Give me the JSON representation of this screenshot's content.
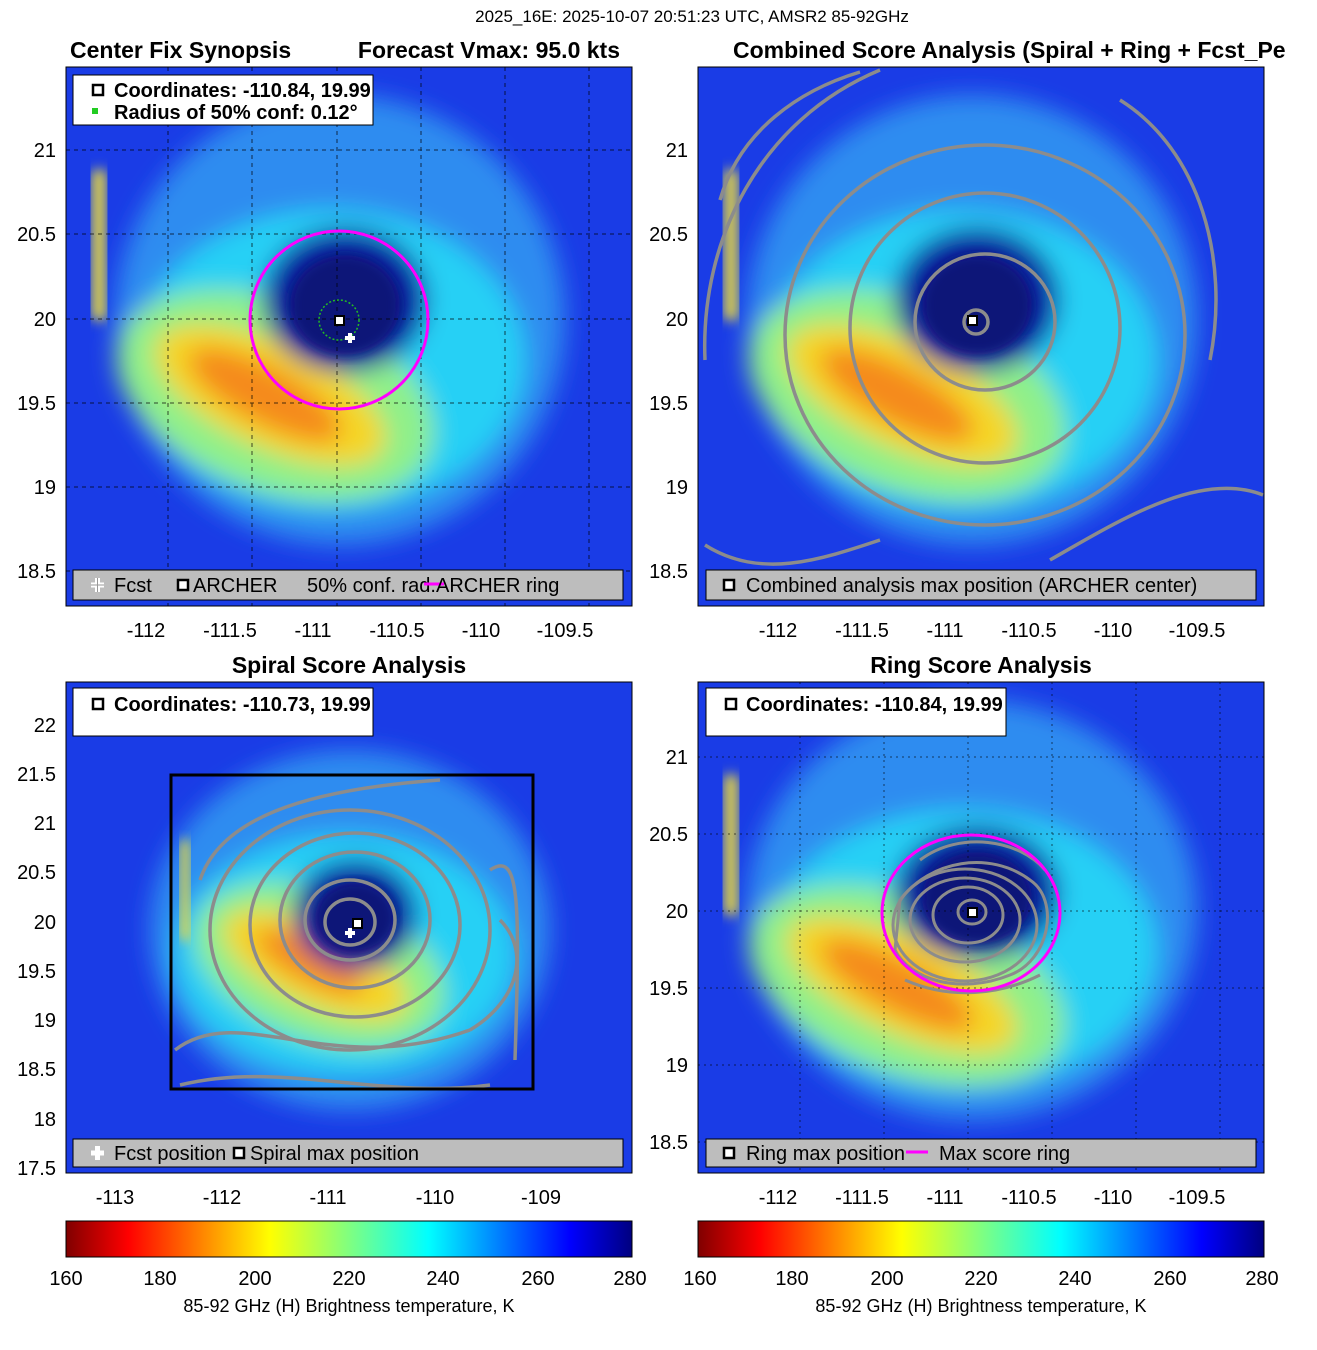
{
  "suptitle": "2025_16E: 2025-10-07 20:51:23 UTC, AMSR2 85-92GHz",
  "colors": {
    "ring": "#ff00ff",
    "contour": "#8c8c8c",
    "conf_circle": "#22bb22",
    "legend_bg": "#bdbdbd"
  },
  "colorbar": {
    "label": "85-92 GHz (H) Brightness temperature, K",
    "ticks": [
      "160",
      "180",
      "200",
      "220",
      "240",
      "260",
      "280"
    ],
    "range": [
      160,
      280
    ],
    "colormap": "jet_reversed"
  },
  "chart_data": [
    {
      "type": "heatmap",
      "panel": "top-left",
      "title_left": "Center Fix Synopsis",
      "title_right": "Forecast Vmax: 95.0 kts",
      "xlim": [
        -112.6,
        -109.2
      ],
      "ylim": [
        18.3,
        21.5
      ],
      "xticks": [
        "-112",
        "-111.5",
        "-111",
        "-110.5",
        "-110",
        "-109.5"
      ],
      "yticks": [
        "18.5",
        "19",
        "19.5",
        "20",
        "20.5",
        "21"
      ],
      "grid": true,
      "info_lines": [
        "Coordinates: -110.84, 19.99",
        "Radius of 50% conf: 0.12°"
      ],
      "legend": [
        "Fcst",
        "ARCHER",
        "50% conf. rad.",
        "ARCHER ring"
      ],
      "archer_center": [
        -110.84,
        19.99
      ],
      "fcst_position": [
        -110.8,
        19.89
      ],
      "conf_radius_deg": 0.12,
      "ring_radius_deg": 0.53
    },
    {
      "type": "heatmap",
      "panel": "top-right",
      "title": "Combined Score Analysis (Spiral + Ring + Fcst_Pe",
      "xlim": [
        -112.6,
        -109.2
      ],
      "ylim": [
        18.3,
        21.5
      ],
      "xticks": [
        "-112",
        "-111.5",
        "-111",
        "-110.5",
        "-110",
        "-109.5"
      ],
      "yticks": [
        "18.5",
        "19",
        "19.5",
        "20",
        "20.5",
        "21"
      ],
      "grid": false,
      "legend": [
        "Combined analysis max position (ARCHER center)"
      ],
      "max_position": [
        -110.84,
        19.99
      ]
    },
    {
      "type": "heatmap",
      "panel": "bottom-left",
      "title": "Spiral Score Analysis",
      "xlim": [
        -113.5,
        -108.2
      ],
      "ylim": [
        17.5,
        22.5
      ],
      "xticks": [
        "-113",
        "-112",
        "-111",
        "-110",
        "-109"
      ],
      "yticks": [
        "17.5",
        "18",
        "18.5",
        "19",
        "19.5",
        "20",
        "20.5",
        "21",
        "21.5",
        "22"
      ],
      "grid": false,
      "info_lines": [
        "Coordinates: -110.73, 19.99"
      ],
      "legend": [
        "Fcst position",
        "Spiral max position"
      ],
      "spiral_max": [
        -110.73,
        19.99
      ],
      "fcst_position": [
        -110.8,
        19.89
      ],
      "search_box": {
        "lon": [
          -112.5,
          -109.1
        ],
        "lat": [
          18.3,
          21.5
        ]
      }
    },
    {
      "type": "heatmap",
      "panel": "bottom-right",
      "title": "Ring Score Analysis",
      "xlim": [
        -112.6,
        -109.2
      ],
      "ylim": [
        18.3,
        21.5
      ],
      "xticks": [
        "-112",
        "-111.5",
        "-111",
        "-110.5",
        "-110",
        "-109.5"
      ],
      "yticks": [
        "18.5",
        "19",
        "19.5",
        "20",
        "20.5",
        "21"
      ],
      "grid": true,
      "info_lines": [
        "Coordinates: -110.84, 19.99"
      ],
      "legend": [
        "Ring max position",
        "Max score ring"
      ],
      "ring_max": [
        -110.84,
        19.99
      ],
      "ring_radius_deg": 0.53
    }
  ]
}
